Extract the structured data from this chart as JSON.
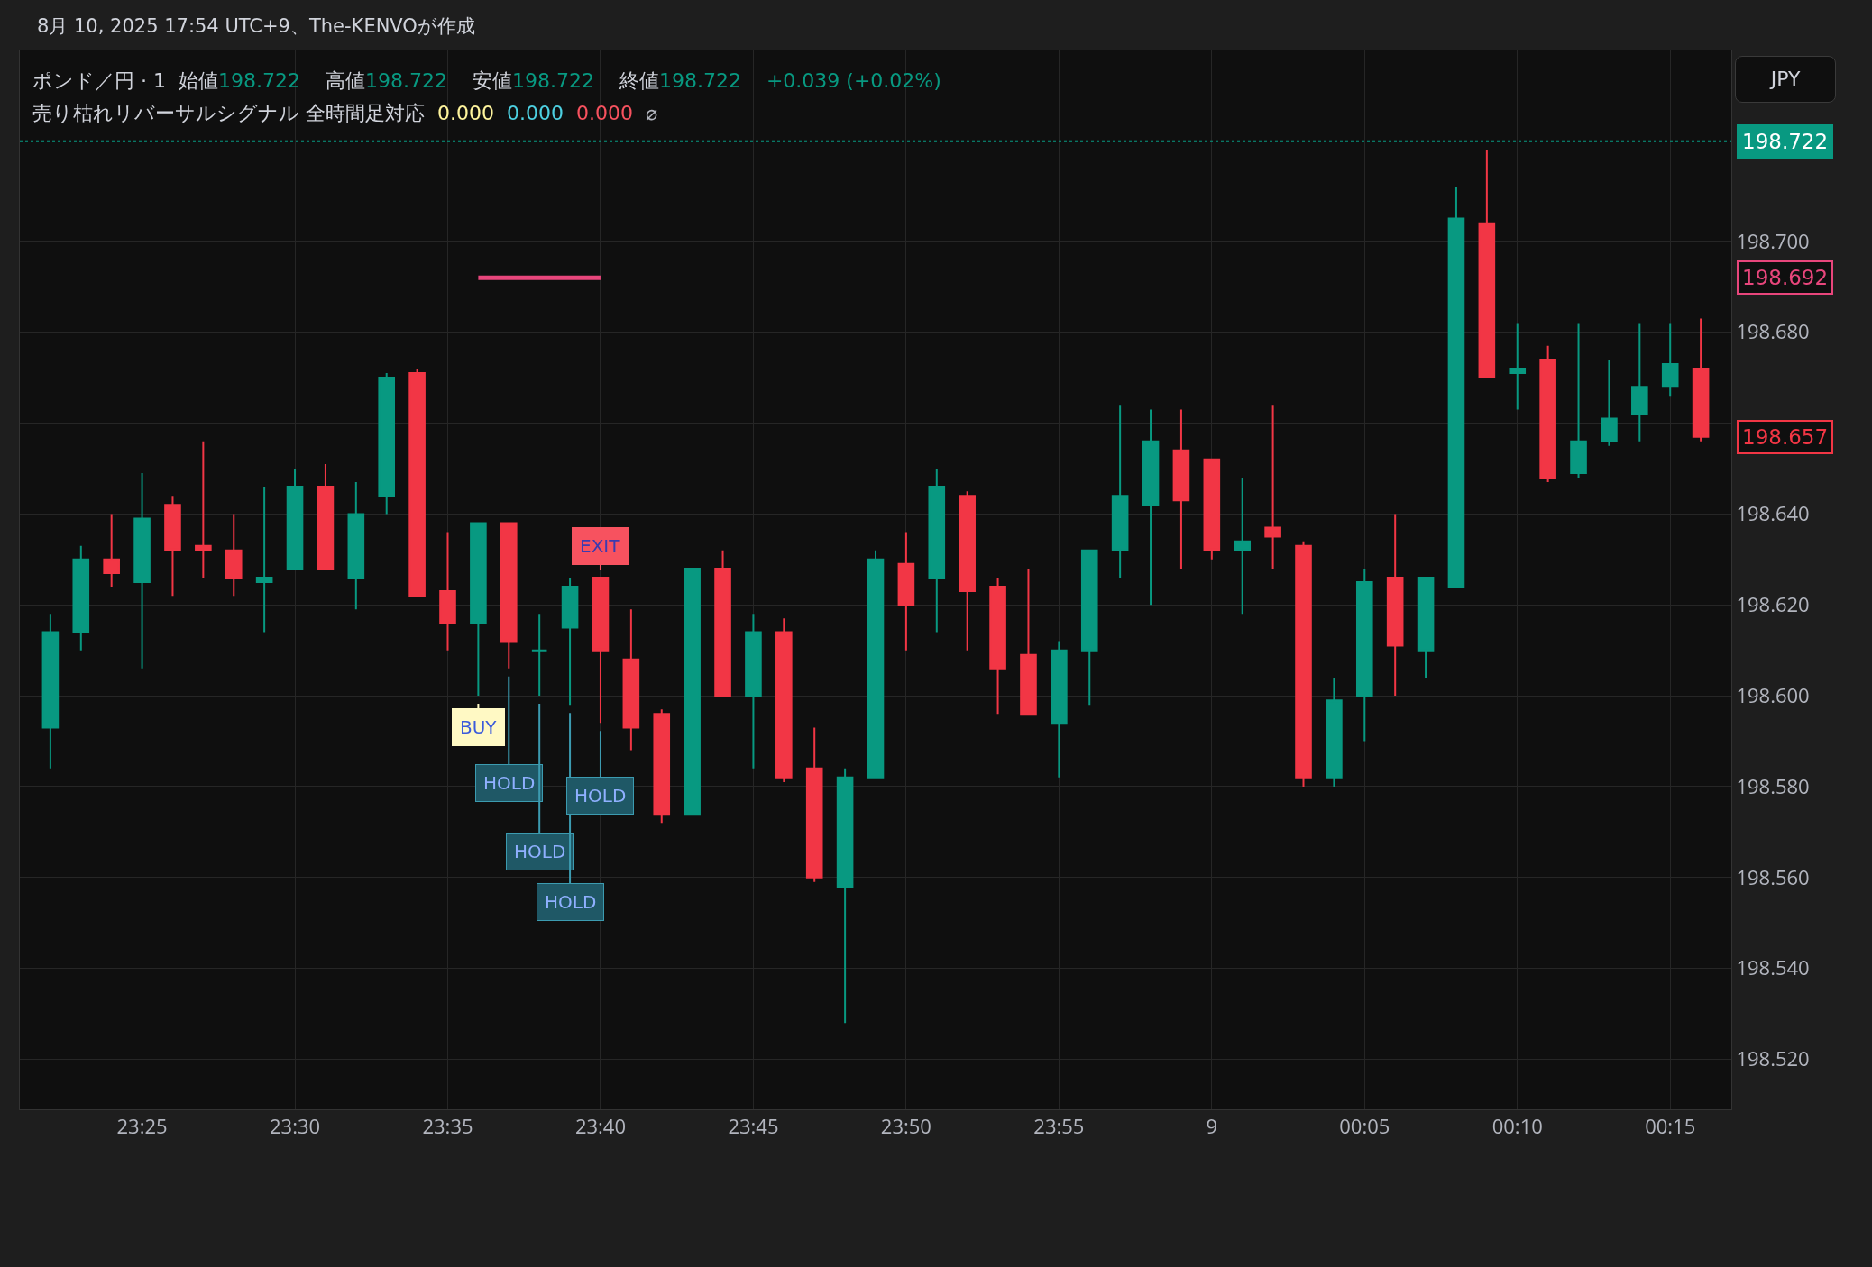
{
  "chart_data": {
    "type": "candlestick",
    "title": "8月 10, 2025 17:54 UTC+9、The-KENVOが作成",
    "subtitle": "ポンド／円 · 1",
    "annotations": [
      "始値198.722",
      "高値198.722",
      "安値198.722",
      "終値198.722",
      "+0.039 (+0.02%)",
      "売り枯れリバーサルシグナル 全時間足対応",
      "0.000",
      "0.000",
      "0.000",
      "⌀",
      "JPY",
      {
        "text": "BUY",
        "x": "2025-08-08T23:36",
        "y": 198.6
      },
      {
        "text": "HOLD",
        "x": "2025-08-08T23:37",
        "y": 198.606
      },
      {
        "text": "HOLD",
        "x": "2025-08-08T23:38",
        "y": 198.6
      },
      {
        "text": "HOLD",
        "x": "2025-08-08T23:39",
        "y": 198.598
      },
      {
        "text": "HOLD",
        "x": "2025-08-08T23:40",
        "y": 198.594
      },
      {
        "text": "EXIT",
        "x": "2025-08-08T23:40",
        "y": 198.626
      },
      "198.692",
      "198.657"
    ],
    "x": [
      "2025-08-08T23:22",
      "2025-08-08T23:23",
      "2025-08-08T23:24",
      "2025-08-08T23:25",
      "2025-08-08T23:26",
      "2025-08-08T23:27",
      "2025-08-08T23:28",
      "2025-08-08T23:29",
      "2025-08-08T23:30",
      "2025-08-08T23:31",
      "2025-08-08T23:32",
      "2025-08-08T23:33",
      "2025-08-08T23:34",
      "2025-08-08T23:35",
      "2025-08-08T23:36",
      "2025-08-08T23:37",
      "2025-08-08T23:38",
      "2025-08-08T23:39",
      "2025-08-08T23:40",
      "2025-08-08T23:41",
      "2025-08-08T23:42",
      "2025-08-08T23:43",
      "2025-08-08T23:44",
      "2025-08-08T23:45",
      "2025-08-08T23:46",
      "2025-08-08T23:47",
      "2025-08-08T23:48",
      "2025-08-08T23:49",
      "2025-08-08T23:50",
      "2025-08-08T23:51",
      "2025-08-08T23:52",
      "2025-08-08T23:53",
      "2025-08-08T23:54",
      "2025-08-08T23:55",
      "2025-08-08T23:56",
      "2025-08-08T23:57",
      "2025-08-08T23:58",
      "2025-08-08T23:59",
      "2025-08-09T00:00",
      "2025-08-09T00:01",
      "2025-08-09T00:02",
      "2025-08-09T00:03",
      "2025-08-09T00:04",
      "2025-08-09T00:05",
      "2025-08-09T00:06",
      "2025-08-09T00:07",
      "2025-08-09T00:08",
      "2025-08-09T00:09",
      "2025-08-09T00:10",
      "2025-08-09T00:11",
      "2025-08-09T00:12",
      "2025-08-09T00:13",
      "2025-08-09T00:14",
      "2025-08-09T00:15",
      "2025-08-09T00:16"
    ],
    "ohlc": [
      [
        198.593,
        198.618,
        198.584,
        198.614
      ],
      [
        198.614,
        198.633,
        198.61,
        198.63
      ],
      [
        198.63,
        198.64,
        198.624,
        198.627
      ],
      [
        198.625,
        198.649,
        198.606,
        198.639
      ],
      [
        198.642,
        198.644,
        198.622,
        198.632
      ],
      [
        198.633,
        198.656,
        198.626,
        198.632
      ],
      [
        198.632,
        198.64,
        198.622,
        198.626
      ],
      [
        198.625,
        198.646,
        198.614,
        198.626
      ],
      [
        198.628,
        198.65,
        198.628,
        198.646
      ],
      [
        198.646,
        198.651,
        198.628,
        198.628
      ],
      [
        198.626,
        198.647,
        198.619,
        198.64
      ],
      [
        198.644,
        198.671,
        198.64,
        198.67
      ],
      [
        198.671,
        198.672,
        198.622,
        198.622
      ],
      [
        198.623,
        198.636,
        198.61,
        198.616
      ],
      [
        198.616,
        198.638,
        198.6,
        198.638
      ],
      [
        198.638,
        198.638,
        198.606,
        198.612
      ],
      [
        198.61,
        198.618,
        198.6,
        198.61
      ],
      [
        198.615,
        198.626,
        198.598,
        198.624
      ],
      [
        198.626,
        198.626,
        198.594,
        198.61
      ],
      [
        198.608,
        198.619,
        198.588,
        198.593
      ],
      [
        198.596,
        198.597,
        198.572,
        198.574
      ],
      [
        198.574,
        198.628,
        198.574,
        198.628
      ],
      [
        198.628,
        198.632,
        198.6,
        198.6
      ],
      [
        198.6,
        198.618,
        198.584,
        198.614
      ],
      [
        198.614,
        198.617,
        198.581,
        198.582
      ],
      [
        198.584,
        198.593,
        198.559,
        198.56
      ],
      [
        198.558,
        198.584,
        198.528,
        198.582
      ],
      [
        198.582,
        198.632,
        198.582,
        198.63
      ],
      [
        198.629,
        198.636,
        198.61,
        198.62
      ],
      [
        198.626,
        198.65,
        198.614,
        198.646
      ],
      [
        198.644,
        198.645,
        198.61,
        198.623
      ],
      [
        198.624,
        198.626,
        198.596,
        198.606
      ],
      [
        198.609,
        198.628,
        198.596,
        198.596
      ],
      [
        198.594,
        198.612,
        198.582,
        198.61
      ],
      [
        198.61,
        198.632,
        198.598,
        198.632
      ],
      [
        198.632,
        198.664,
        198.626,
        198.644
      ],
      [
        198.642,
        198.663,
        198.62,
        198.656
      ],
      [
        198.654,
        198.663,
        198.628,
        198.643
      ],
      [
        198.652,
        198.652,
        198.63,
        198.632
      ],
      [
        198.632,
        198.648,
        198.618,
        198.634
      ],
      [
        198.637,
        198.664,
        198.628,
        198.635
      ],
      [
        198.633,
        198.634,
        198.58,
        198.582
      ],
      [
        198.582,
        198.604,
        198.58,
        198.599
      ],
      [
        198.6,
        198.628,
        198.59,
        198.625
      ],
      [
        198.626,
        198.64,
        198.6,
        198.611
      ],
      [
        198.61,
        198.626,
        198.604,
        198.626
      ],
      [
        198.624,
        198.712,
        198.624,
        198.705
      ],
      [
        198.704,
        198.72,
        198.67,
        198.67
      ],
      [
        198.671,
        198.682,
        198.663,
        198.672
      ],
      [
        198.674,
        198.677,
        198.647,
        198.648
      ],
      [
        198.649,
        198.682,
        198.648,
        198.656
      ],
      [
        198.656,
        198.674,
        198.655,
        198.661
      ],
      [
        198.662,
        198.682,
        198.656,
        198.668
      ],
      [
        198.668,
        198.682,
        198.666,
        198.673
      ],
      [
        198.672,
        198.683,
        198.656,
        198.657
      ]
    ],
    "colors": [
      "#089981",
      "#089981",
      "#f23645",
      "#089981",
      "#f23645",
      "#f23645",
      "#f23645",
      "#089981",
      "#089981",
      "#f23645",
      "#089981",
      "#089981",
      "#f23645",
      "#f23645",
      "#089981",
      "#f23645",
      "#089981",
      "#089981",
      "#f23645",
      "#f23645",
      "#f23645",
      "#089981",
      "#f23645",
      "#089981",
      "#f23645",
      "#f23645",
      "#089981",
      "#089981",
      "#f23645",
      "#089981",
      "#f23645",
      "#f23645",
      "#f23645",
      "#089981",
      "#089981",
      "#089981",
      "#089981",
      "#f23645",
      "#f23645",
      "#089981",
      "#f23645",
      "#f23645",
      "#089981",
      "#089981",
      "#f23645",
      "#089981",
      "#089981",
      "#f23645",
      "#089981",
      "#f23645",
      "#089981",
      "#089981",
      "#089981",
      "#089981",
      "#f23645"
    ],
    "series": [
      {
        "type": "line",
        "x": [
          "2025-08-08T23:36",
          "2025-08-08T23:40"
        ],
        "values": [
          198.692,
          198.692
        ],
        "color": "#e8467c"
      }
    ],
    "xlim": [
      "2025-08-08T23:21",
      "2025-08-09T00:17"
    ],
    "ylim": [
      198.509,
      198.742
    ],
    "xticks": [
      {
        "value": "2025-08-08T23:25",
        "label": "23:25"
      },
      {
        "value": "2025-08-08T23:30",
        "label": "23:30"
      },
      {
        "value": "2025-08-08T23:35",
        "label": "23:35"
      },
      {
        "value": "2025-08-08T23:40",
        "label": "23:40"
      },
      {
        "value": "2025-08-08T23:45",
        "label": "23:45"
      },
      {
        "value": "2025-08-08T23:50",
        "label": "23:50"
      },
      {
        "value": "2025-08-08T23:55",
        "label": "23:55"
      },
      {
        "value": "2025-08-09",
        "label": "9"
      },
      {
        "value": "2025-08-09T00:05",
        "label": "00:05"
      },
      {
        "value": "2025-08-09T00:10",
        "label": "00:10"
      },
      {
        "value": "2025-08-09T00:15",
        "label": "00:15"
      }
    ],
    "yticks": [
      {
        "value": 198.52,
        "label": "198.520"
      },
      {
        "value": 198.54,
        "label": "198.540"
      },
      {
        "value": 198.56,
        "label": "198.560"
      },
      {
        "value": 198.58,
        "label": "198.580"
      },
      {
        "value": 198.6,
        "label": "198.600"
      },
      {
        "value": 198.62,
        "label": "198.620"
      },
      {
        "value": 198.64,
        "label": "198.640"
      },
      {
        "value": 198.66,
        "label": null
      },
      {
        "value": 198.68,
        "label": "198.680"
      },
      {
        "value": 198.7,
        "label": "198.700"
      },
      {
        "value": 198.72,
        "label": null
      }
    ],
    "grid": true,
    "ref_lines": [
      {
        "axis": "y",
        "value": 198.722,
        "label": "198.722",
        "color": "#089981",
        "line_style": "dotted"
      }
    ]
  }
}
